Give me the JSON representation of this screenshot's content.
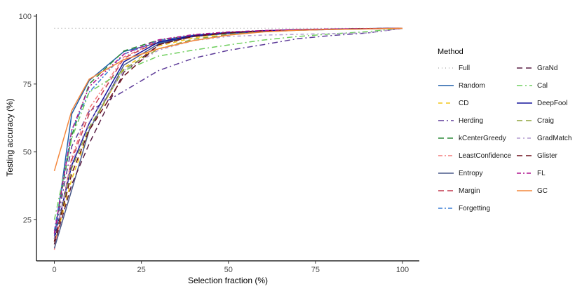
{
  "chart_data": {
    "type": "line",
    "title": "",
    "xlabel": "Selection fraction (%)",
    "ylabel": "Testing accuracy (%)",
    "xlim": [
      -5,
      105
    ],
    "ylim": [
      9.7,
      104.5
    ],
    "xticks": [
      0,
      25,
      50,
      75,
      100
    ],
    "yticks": [
      25,
      50,
      75,
      100
    ],
    "grid": false,
    "legend_title": "Method",
    "legend_position": "right",
    "x": [
      0,
      5,
      10,
      20,
      30,
      40,
      50,
      60,
      70,
      80,
      90,
      100
    ],
    "series": [
      {
        "name": "Full",
        "color": "#a9a9a9",
        "dash": "1,4",
        "values": [
          95.5,
          95.5,
          95.5,
          95.5,
          95.5,
          95.5,
          95.5,
          95.5,
          95.5,
          95.5,
          95.5,
          95.5
        ]
      },
      {
        "name": "Random",
        "color": "#1f5fa8",
        "dash": "",
        "values": [
          18,
          64,
          76.3,
          87,
          90.2,
          92.5,
          93.6,
          94.3,
          94.8,
          95.1,
          95.3,
          95.5
        ]
      },
      {
        "name": "CD",
        "color": "#f2c618",
        "dash": "6,5",
        "values": [
          16,
          40,
          58,
          81,
          89,
          92,
          93.8,
          94.6,
          95,
          95.2,
          95.4,
          95.5
        ]
      },
      {
        "name": "Herding",
        "color": "#5e3c99",
        "dash": "8,4,2,4",
        "values": [
          19,
          52,
          65,
          72.4,
          80,
          84.5,
          87.4,
          89.5,
          91.7,
          92.9,
          93.8,
          95.5
        ]
      },
      {
        "name": "kCenterGreedy",
        "color": "#2e8b3a",
        "dash": "8,5",
        "values": [
          20,
          56,
          75,
          87.2,
          91.2,
          93,
          94,
          94.6,
          95,
          95.2,
          95.4,
          95.5
        ]
      },
      {
        "name": "LeastConfidence",
        "color": "#f47c7c",
        "dash": "6,3,2,3",
        "values": [
          14,
          48,
          66,
          85,
          90.8,
          92.8,
          94,
          94.6,
          95,
          95.2,
          95.4,
          95.5
        ]
      },
      {
        "name": "Entropy",
        "color": "#4a5a8a",
        "dash": "",
        "values": [
          14.5,
          36,
          58,
          82,
          89.8,
          92.6,
          93.8,
          94.5,
          94.9,
          95.2,
          95.4,
          95.5
        ]
      },
      {
        "name": "Margin",
        "color": "#c2384f",
        "dash": "8,5",
        "values": [
          17,
          47,
          64,
          84.5,
          90.8,
          93,
          94,
          94.6,
          95,
          95.2,
          95.4,
          95.5
        ]
      },
      {
        "name": "Forgetting",
        "color": "#3a7fd5",
        "dash": "6,3,2,3",
        "values": [
          21,
          58,
          72,
          86,
          91,
          93,
          94,
          94.6,
          95,
          95.2,
          95.4,
          95.5
        ]
      },
      {
        "name": "GraNd",
        "color": "#5a1f45",
        "dash": "8,5",
        "values": [
          16,
          38,
          53,
          79.4,
          89.5,
          92.5,
          93.8,
          94.5,
          94.9,
          95.2,
          95.4,
          95.5
        ]
      },
      {
        "name": "Cal",
        "color": "#6fcf5e",
        "dash": "8,4,2,4",
        "values": [
          25,
          55,
          72,
          80,
          85.3,
          87.5,
          89.4,
          91.2,
          92.5,
          93.5,
          94.3,
          95.5
        ]
      },
      {
        "name": "DeepFool",
        "color": "#14149a",
        "dash": "",
        "values": [
          18,
          45,
          60.5,
          83.2,
          90.5,
          92.8,
          93.9,
          94.6,
          95,
          95.2,
          95.4,
          95.5
        ]
      },
      {
        "name": "Craig",
        "color": "#8ea33b",
        "dash": "8,5",
        "values": [
          17,
          44,
          59,
          80.5,
          88,
          91.5,
          93.3,
          94.2,
          94.8,
          95.1,
          95.3,
          95.5
        ]
      },
      {
        "name": "GradMatch",
        "color": "#b39ccf",
        "dash": "5,4,2,4",
        "values": [
          18,
          46,
          61,
          80,
          87.5,
          91,
          92.5,
          93,
          93.3,
          93.6,
          93.8,
          95.5
        ]
      },
      {
        "name": "Glister",
        "color": "#6b0f1a",
        "dash": "8,5",
        "values": [
          17,
          42,
          58,
          78,
          89.5,
          92.6,
          93.9,
          94.6,
          95,
          95.2,
          95.4,
          95.5
        ]
      },
      {
        "name": "FL",
        "color": "#b0158f",
        "dash": "6,3,2,3",
        "values": [
          20,
          58,
          74,
          86,
          91.3,
          93.2,
          94.2,
          94.7,
          95.1,
          95.3,
          95.4,
          95.5
        ]
      },
      {
        "name": "GC",
        "color": "#f4873c",
        "dash": "",
        "values": [
          43,
          65.2,
          76.8,
          84,
          88,
          91,
          93,
          94.2,
          94.8,
          95.1,
          95.3,
          95.5
        ]
      }
    ]
  }
}
